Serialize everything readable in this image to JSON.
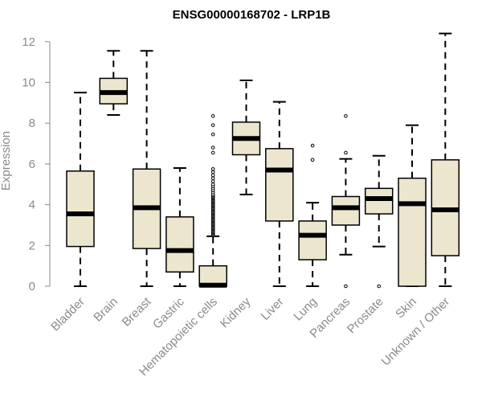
{
  "chart_data": {
    "type": "boxplot",
    "title": "ENSG00000168702 - LRP1B",
    "xlabel": "",
    "ylabel": "Expression",
    "ylim": [
      0,
      12.4
    ],
    "yticks": [
      0,
      2,
      4,
      6,
      8,
      10,
      12
    ],
    "ytick_labels": [
      "0",
      "2",
      "4",
      "6",
      "8",
      "10",
      "12"
    ],
    "grid": false,
    "colors": {
      "box_fill": "#ede6cf",
      "stroke": "#000000",
      "axis": "#8a8a8a"
    },
    "categories": [
      "Bladder",
      "Brain",
      "Breast",
      "Gastric",
      "Hematopoietic cells",
      "Kidney",
      "Liver",
      "Lung",
      "Pancreas",
      "Prostate",
      "Skin",
      "Unknown / Other"
    ],
    "boxes": [
      {
        "min": 0,
        "q1": 1.95,
        "median": 3.55,
        "q3": 5.65,
        "max": 9.5,
        "outliers": []
      },
      {
        "min": 8.4,
        "q1": 8.95,
        "median": 9.5,
        "q3": 10.2,
        "max": 11.55,
        "outliers": []
      },
      {
        "min": 0,
        "q1": 1.85,
        "median": 3.85,
        "q3": 5.75,
        "max": 11.55,
        "outliers": []
      },
      {
        "min": 0,
        "q1": 0.7,
        "median": 1.75,
        "q3": 3.4,
        "max": 5.8,
        "outliers": []
      },
      {
        "min": 0,
        "q1": 0.0,
        "median": 0.05,
        "q3": 1.0,
        "max": 2.45,
        "outliers": [
          2.5,
          2.55,
          2.6,
          2.65,
          2.7,
          2.75,
          2.8,
          2.85,
          2.9,
          2.95,
          3.0,
          3.05,
          3.1,
          3.15,
          3.2,
          3.25,
          3.3,
          3.35,
          3.4,
          3.45,
          3.5,
          3.55,
          3.6,
          3.65,
          3.7,
          3.75,
          3.8,
          3.85,
          3.9,
          3.95,
          4.0,
          4.05,
          4.1,
          4.15,
          4.2,
          4.25,
          4.3,
          4.35,
          4.4,
          4.45,
          4.5,
          4.6,
          4.7,
          4.8,
          4.9,
          5.0,
          5.15,
          5.3,
          5.45,
          5.6,
          5.75,
          6.55,
          6.8,
          7.45,
          7.9,
          8.35
        ]
      },
      {
        "min": 4.5,
        "q1": 6.45,
        "median": 7.25,
        "q3": 8.05,
        "max": 10.1,
        "outliers": []
      },
      {
        "min": 0,
        "q1": 3.2,
        "median": 5.7,
        "q3": 6.75,
        "max": 9.05,
        "outliers": []
      },
      {
        "min": 0,
        "q1": 1.3,
        "median": 2.5,
        "q3": 3.2,
        "max": 4.1,
        "outliers": [
          6.2,
          6.9
        ]
      },
      {
        "min": 1.55,
        "q1": 3.0,
        "median": 3.85,
        "q3": 4.4,
        "max": 6.25,
        "outliers": [
          0,
          6.55,
          8.35
        ]
      },
      {
        "min": 1.95,
        "q1": 3.55,
        "median": 4.3,
        "q3": 4.8,
        "max": 6.4,
        "outliers": [
          0
        ]
      },
      {
        "min": 0,
        "q1": 0.0,
        "median": 4.05,
        "q3": 5.3,
        "max": 7.9,
        "outliers": []
      },
      {
        "min": 0,
        "q1": 1.5,
        "median": 3.75,
        "q3": 6.2,
        "max": 12.4,
        "outliers": []
      }
    ]
  }
}
